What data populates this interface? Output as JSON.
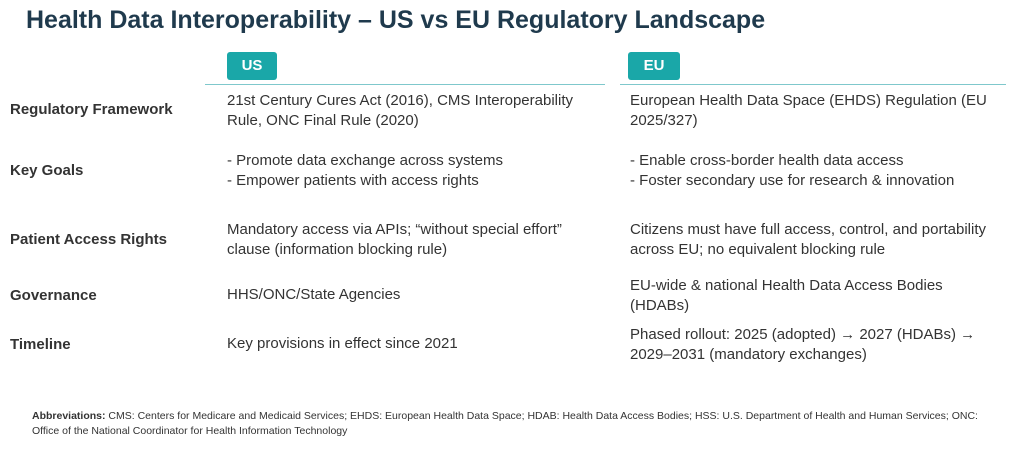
{
  "title": "Health Data Interoperability – US vs EU Regulatory Landscape",
  "columns": {
    "us": "US",
    "eu": "EU"
  },
  "colors": {
    "accent": "#1aa7a8",
    "title": "#1f3a4d",
    "rule": "#7fc8cc"
  },
  "rows": [
    {
      "label": "Regulatory Framework",
      "us": [
        "21st Century Cures Act (2016), CMS Interoperability",
        "Rule, ONC Final Rule (2020)"
      ],
      "eu": [
        "European Health Data Space (EHDS) Regulation (EU",
        "2025/327)"
      ]
    },
    {
      "label": "Key Goals",
      "us": [
        "- Promote data exchange across systems",
        "- Empower patients with access rights"
      ],
      "eu": [
        "- Enable cross-border health data access",
        "- Foster secondary use for research & innovation"
      ]
    },
    {
      "label": "Patient Access Rights",
      "us": [
        "Mandatory access via APIs; “without special effort”",
        "clause (information blocking rule)"
      ],
      "eu": [
        "Citizens must have full access, control, and portability",
        "across EU; no equivalent blocking rule"
      ]
    },
    {
      "label": "Governance",
      "us": [
        "HHS/ONC/State Agencies"
      ],
      "eu": [
        "EU-wide & national Health Data Access Bodies",
        "(HDABs)"
      ]
    },
    {
      "label": "Timeline",
      "us": [
        "Key provisions in effect since 2021"
      ],
      "eu": [
        "Phased rollout: 2025 (adopted) → 2027 (HDABs) →",
        "2029–2031 (mandatory exchanges)"
      ]
    }
  ],
  "footnote": {
    "label": "Abbreviations:",
    "text": " CMS: Centers for Medicare and Medicaid Services; EHDS: European Health Data Space; HDAB: Health Data Access Bodies; HSS: U.S. Department of Health and Human Services; ONC: Office of the National Coordinator for Health Information Technology"
  }
}
